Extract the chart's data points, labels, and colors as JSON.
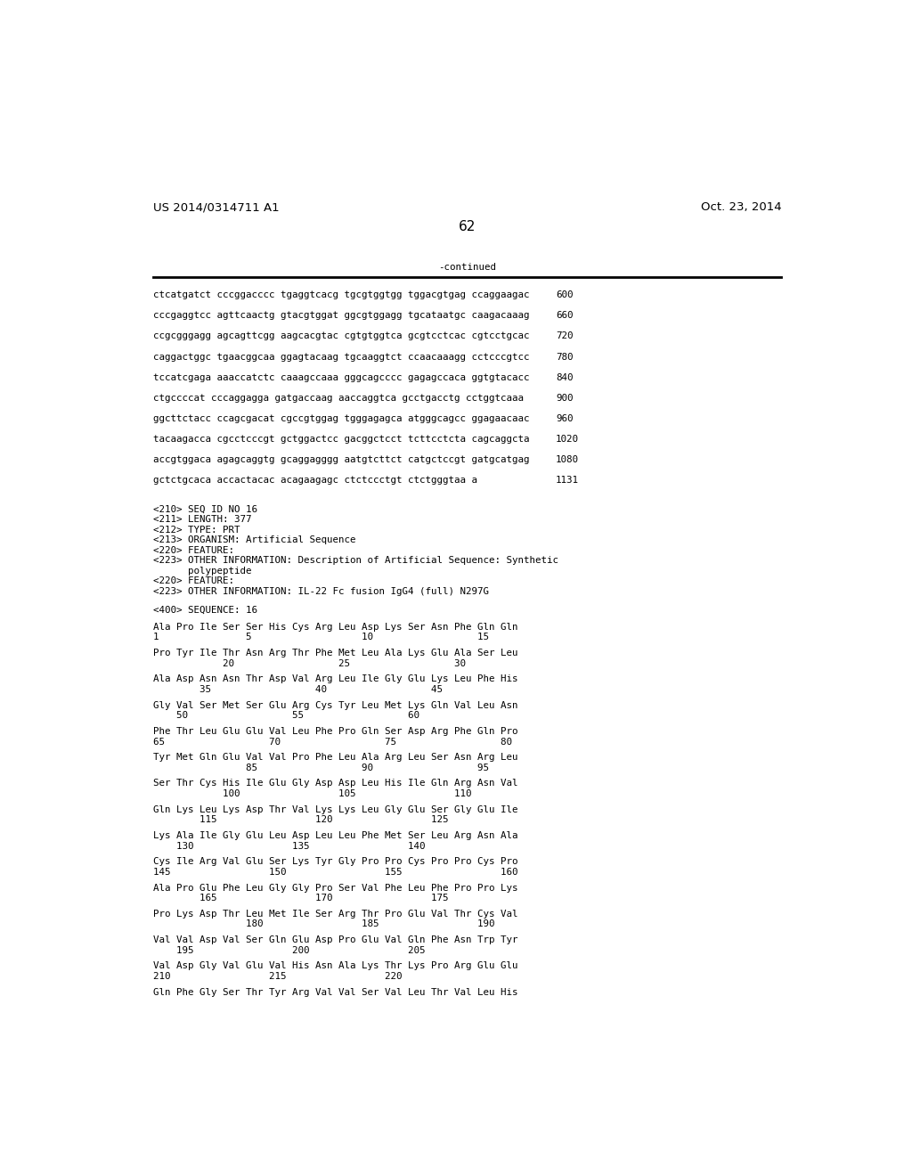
{
  "background_color": "#ffffff",
  "header_left": "US 2014/0314711 A1",
  "header_right": "Oct. 23, 2014",
  "page_number": "62",
  "continued_text": "-continued",
  "font_size_header": 9.5,
  "font_size_body": 7.8,
  "font_size_page": 11,
  "monospace_lines": [
    [
      "ctcatgatct cccggacccc tgaggtcacg tgcgtggtgg tggacgtgag ccaggaagac",
      "600"
    ],
    [
      "cccgaggtcc agttcaactg gtacgtggat ggcgtggagg tgcataatgc caagacaaag",
      "660"
    ],
    [
      "ccgcgggagg agcagttcgg aagcacgtac cgtgtggtca gcgtcctcac cgtcctgcac",
      "720"
    ],
    [
      "caggactggc tgaacggcaa ggagtacaag tgcaaggtct ccaacaaagg cctcccgtcc",
      "780"
    ],
    [
      "tccatcgaga aaaccatctc caaagccaaa gggcagcccc gagagccaca ggtgtacacc",
      "840"
    ],
    [
      "ctgccccat cccaggagga gatgaccaag aaccaggtca gcctgacctg cctggtcaaa",
      "900"
    ],
    [
      "ggcttctacc ccagcgacat cgccgtggag tgggagagca atgggcagcc ggagaacaac",
      "960"
    ],
    [
      "tacaagacca cgcctcccgt gctggactcc gacggctcct tcttcctcta cagcaggcta",
      "1020"
    ],
    [
      "accgtggaca agagcaggtg gcaggagggg aatgtcttct catgctccgt gatgcatgag",
      "1080"
    ],
    [
      "gctctgcaca accactacac acagaagagc ctctccctgt ctctgggtaa a",
      "1131"
    ]
  ],
  "metadata_lines": [
    "<210> SEQ ID NO 16",
    "<211> LENGTH: 377",
    "<212> TYPE: PRT",
    "<213> ORGANISM: Artificial Sequence",
    "<220> FEATURE:",
    "<223> OTHER INFORMATION: Description of Artificial Sequence: Synthetic",
    "      polypeptide",
    "<220> FEATURE:",
    "<223> OTHER INFORMATION: IL-22 Fc fusion IgG4 (full) N297G",
    "",
    "<400> SEQUENCE: 16"
  ],
  "sequence_lines": [
    "Ala Pro Ile Ser Ser His Cys Arg Leu Asp Lys Ser Asn Phe Gln Gln",
    "1               5                   10                  15",
    "",
    "Pro Tyr Ile Thr Asn Arg Thr Phe Met Leu Ala Lys Glu Ala Ser Leu",
    "            20                  25                  30",
    "",
    "Ala Asp Asn Asn Thr Asp Val Arg Leu Ile Gly Glu Lys Leu Phe His",
    "        35                  40                  45",
    "",
    "Gly Val Ser Met Ser Glu Arg Cys Tyr Leu Met Lys Gln Val Leu Asn",
    "    50                  55                  60",
    "",
    "Phe Thr Leu Glu Glu Val Leu Phe Pro Gln Ser Asp Arg Phe Gln Pro",
    "65                  70                  75                  80",
    "",
    "Tyr Met Gln Glu Val Val Pro Phe Leu Ala Arg Leu Ser Asn Arg Leu",
    "                85                  90                  95",
    "",
    "Ser Thr Cys His Ile Glu Gly Asp Asp Leu His Ile Gln Arg Asn Val",
    "            100                 105                 110",
    "",
    "Gln Lys Leu Lys Asp Thr Val Lys Lys Leu Gly Glu Ser Gly Glu Ile",
    "        115                 120                 125",
    "",
    "Lys Ala Ile Gly Glu Leu Asp Leu Leu Phe Met Ser Leu Arg Asn Ala",
    "    130                 135                 140",
    "",
    "Cys Ile Arg Val Glu Ser Lys Tyr Gly Pro Pro Cys Pro Pro Cys Pro",
    "145                 150                 155                 160",
    "",
    "Ala Pro Glu Phe Leu Gly Gly Pro Ser Val Phe Leu Phe Pro Pro Lys",
    "        165                 170                 175",
    "",
    "Pro Lys Asp Thr Leu Met Ile Ser Arg Thr Pro Glu Val Thr Cys Val",
    "                180                 185                 190",
    "",
    "Val Val Asp Val Ser Gln Glu Asp Pro Glu Val Gln Phe Asn Trp Tyr",
    "    195                 200                 205",
    "",
    "Val Asp Gly Val Glu Val His Asn Ala Lys Thr Lys Pro Arg Glu Glu",
    "210                 215                 220",
    "",
    "Gln Phe Gly Ser Thr Tyr Arg Val Val Ser Val Leu Thr Val Leu His"
  ]
}
